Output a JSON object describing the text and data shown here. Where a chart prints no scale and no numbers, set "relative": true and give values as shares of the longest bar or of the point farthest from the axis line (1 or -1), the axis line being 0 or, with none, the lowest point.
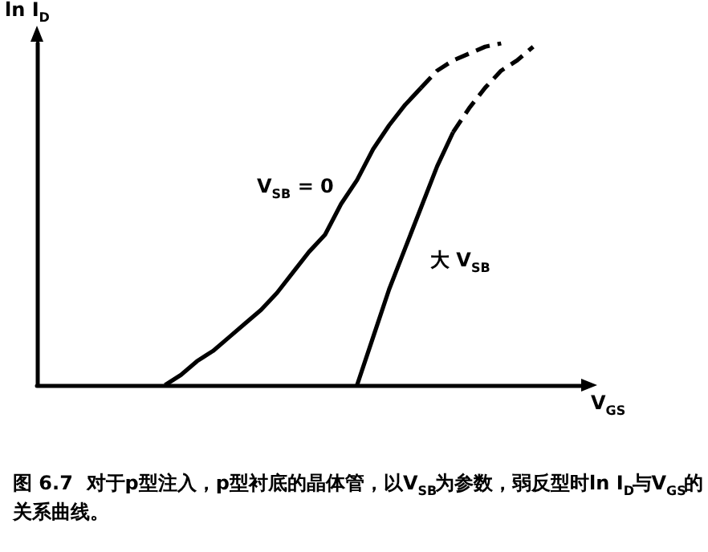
{
  "chart_data": {
    "type": "line",
    "relative": true,
    "xlabel": "V$_{GS}$",
    "ylabel": "ln I$_{D}$",
    "categories": [
      null,
      null,
      null,
      null,
      null,
      null,
      null,
      null,
      null,
      null,
      null,
      null,
      null,
      null,
      null,
      null,
      null,
      null,
      null,
      null,
      null,
      null,
      null,
      null,
      null,
      null,
      null,
      null,
      null,
      null,
      null,
      null,
      null,
      null,
      null
    ],
    "series": [
      {
        "color": "#000000",
        "line_style": "solid",
        "values": [
          null,
          null,
          null,
          null,
          null,
          null,
          null,
          null,
          0,
          0.03,
          0.07,
          0.1,
          0.14,
          0.18,
          0.22,
          0.27,
          0.33,
          0.39,
          0.44,
          0.53,
          0.6,
          0.69,
          0.76,
          0.82,
          0.87,
          null,
          null,
          null,
          null,
          null,
          null,
          null,
          null,
          null,
          null
        ]
      },
      {
        "color": "#000000",
        "line_style": "dashed",
        "values": [
          null,
          null,
          null,
          null,
          null,
          null,
          null,
          null,
          null,
          null,
          null,
          null,
          null,
          null,
          null,
          null,
          null,
          null,
          null,
          null,
          null,
          null,
          null,
          null,
          0.87,
          0.92,
          0.95,
          0.97,
          0.99,
          1,
          null,
          null,
          null,
          null,
          null
        ]
      },
      {
        "color": "#000000",
        "line_style": "solid",
        "values": [
          null,
          null,
          null,
          null,
          null,
          null,
          null,
          null,
          null,
          null,
          null,
          null,
          null,
          null,
          null,
          null,
          null,
          null,
          null,
          null,
          0,
          0.14,
          0.28,
          0.4,
          0.52,
          0.64,
          0.74,
          null,
          null,
          null,
          null,
          null,
          null,
          null,
          null
        ]
      },
      {
        "color": "#000000",
        "line_style": "dashed",
        "values": [
          null,
          null,
          null,
          null,
          null,
          null,
          null,
          null,
          null,
          null,
          null,
          null,
          null,
          null,
          null,
          null,
          null,
          null,
          null,
          null,
          null,
          null,
          null,
          null,
          null,
          null,
          0.74,
          0.81,
          0.87,
          0.92,
          0.95,
          0.99,
          null,
          null,
          null
        ]
      }
    ],
    "annotations": [
      "V$_{SB}$ = 0",
      "大 V$_{SB}$",
      "图 6.7  对于p型注入，p型衬底的晶体管，以V$_{SB}$为参数，弱反型时ln I$_{D}$与V$_{GS}$的关系曲线。"
    ],
    "grid": false,
    "marker": "none"
  }
}
